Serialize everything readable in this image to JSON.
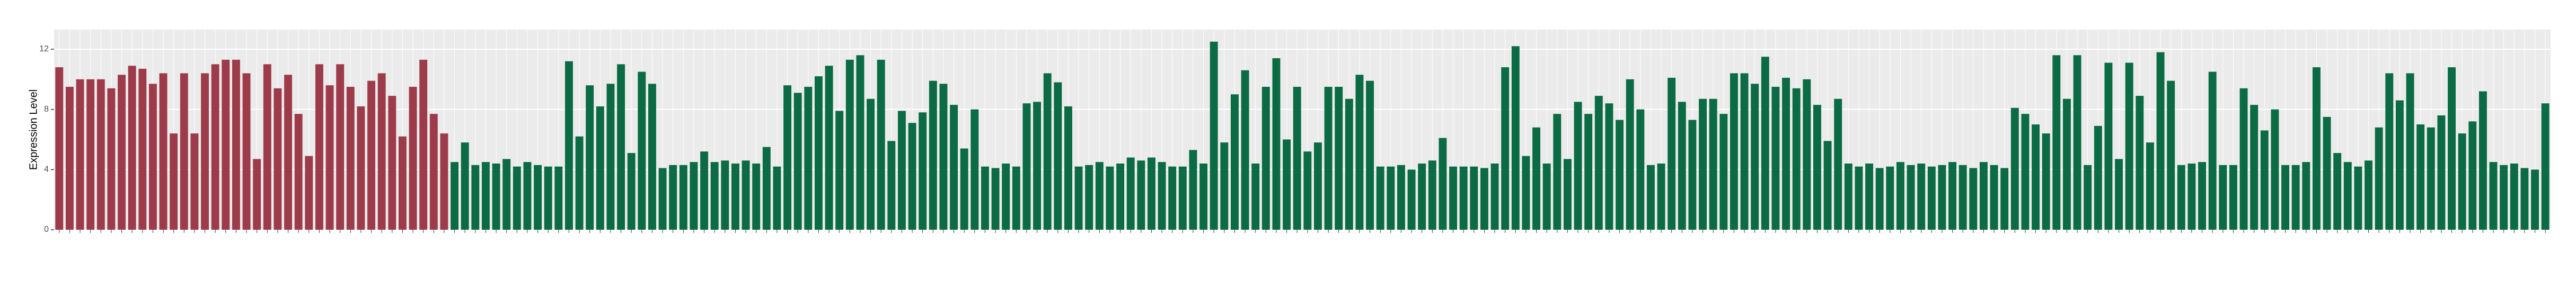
{
  "chart_data": {
    "type": "bar",
    "y_label": "Expression Level",
    "ylim": [
      0,
      13.3
    ],
    "yticks": [
      0,
      4,
      8,
      12
    ],
    "grid": true,
    "background": "#ebebeb",
    "series": [
      {
        "color": "#9e3b4a",
        "values": [
          10.8,
          9.5,
          10,
          10,
          10,
          9.4,
          10.3,
          10.9,
          10.7,
          9.7,
          10.4,
          6.4,
          10.4,
          6.4,
          10.4,
          11,
          11.3,
          11.3,
          10.4,
          4.7,
          11,
          9.4,
          10.3,
          7.7,
          4.9,
          11,
          9.6,
          11,
          9.5,
          8.2,
          9.9,
          10.4,
          8.9,
          6.2,
          9.5,
          11.3,
          7.7,
          6.4
        ]
      },
      {
        "color": "#0b6b44",
        "values": [
          4.5,
          5.8,
          4.3,
          4.5,
          4.4,
          4.7,
          4.2,
          4.5,
          4.3,
          4.2,
          4.2,
          11.2,
          6.2,
          9.6,
          8.2,
          9.7,
          11,
          5.1,
          10.5,
          9.7,
          4.1,
          4.3,
          4.3,
          4.5,
          5.2,
          4.5,
          4.6,
          4.4,
          4.6,
          4.4,
          5.5,
          4.2,
          9.6,
          9.1,
          9.5,
          10.2,
          10.9,
          7.9,
          11.3,
          11.6,
          8.7,
          11.3,
          5.9,
          7.9,
          7.1,
          7.8,
          9.9,
          9.7,
          8.3,
          5.4,
          8.0,
          4.2,
          4.1,
          4.4,
          4.2,
          8.4,
          8.5,
          10.4,
          9.8,
          8.2,
          4.2,
          4.3,
          4.5,
          4.2,
          4.4,
          4.8,
          4.6,
          4.8,
          4.5,
          4.2,
          4.2,
          5.3,
          4.4,
          12.5,
          5.8,
          9.0,
          10.6,
          4.4,
          9.5,
          11.4,
          6.0,
          9.5,
          5.2,
          5.8,
          9.5,
          9.5,
          8.7,
          10.3,
          9.9,
          4.2,
          4.2,
          4.3,
          4.0,
          4.4,
          4.6,
          6.1,
          4.2,
          4.2,
          4.2,
          4.1,
          4.4,
          10.8,
          12.2,
          4.9,
          6.8,
          4.4,
          7.7,
          4.7,
          8.5,
          7.7,
          8.9,
          8.4,
          7.3,
          10.0,
          8.0,
          4.3,
          4.4,
          10.1,
          8.5,
          7.3,
          8.7,
          8.7,
          7.7,
          10.4,
          10.4,
          9.7,
          11.5,
          9.5,
          10.1,
          9.4,
          10.0,
          8.3,
          5.9,
          8.7,
          4.4,
          4.2,
          4.4,
          4.1,
          4.2,
          4.5,
          4.3,
          4.4,
          4.2,
          4.3,
          4.5,
          4.3,
          4.1,
          4.5,
          4.3,
          4.1,
          8.1,
          7.7,
          7.0,
          6.4,
          11.6,
          8.7,
          11.6,
          4.3,
          6.9,
          11.1,
          4.7,
          11.1,
          8.9,
          5.8,
          11.8,
          9.9,
          4.3,
          4.4,
          4.5,
          10.5,
          4.3,
          4.3,
          9.4,
          8.3,
          6.6,
          8.0,
          4.3,
          4.3,
          4.5,
          10.8,
          7.5,
          5.1,
          4.5,
          4.2,
          4.6,
          6.8,
          10.4,
          8.6,
          10.4,
          7.0,
          6.8,
          7.6,
          10.8,
          6.4,
          7.2,
          9.2,
          4.5,
          4.3,
          4.4,
          4.1,
          4.0,
          8.4
        ]
      }
    ]
  }
}
